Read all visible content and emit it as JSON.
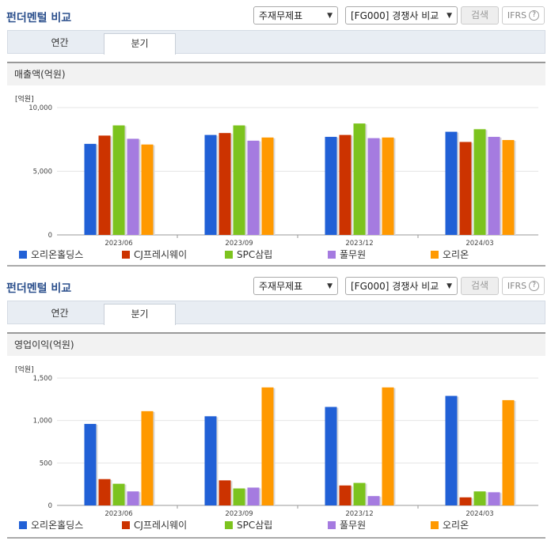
{
  "sections": [
    {
      "title": "펀더멘털 비교",
      "select1": "주재무제표",
      "select2": "[FG000] 경쟁사 비교",
      "search_label": "검색",
      "ifrs_label": "IFRS",
      "ifrs_help": "?",
      "tabs": [
        "연간",
        "분기"
      ],
      "active_tab": 1,
      "metric_label": "매출액(억원)",
      "unit_label": "[억원]"
    },
    {
      "title": "펀더멘털 비교",
      "select1": "주재무제표",
      "select2": "[FG000] 경쟁사 비교",
      "search_label": "검색",
      "ifrs_label": "IFRS",
      "ifrs_help": "?",
      "tabs": [
        "연간",
        "분기"
      ],
      "active_tab": 1,
      "metric_label": "영업이익(억원)",
      "unit_label": "[억원]"
    }
  ],
  "chart_data": [
    {
      "type": "bar",
      "categories": [
        "2023/06",
        "2023/09",
        "2023/12",
        "2024/03"
      ],
      "ylim": [
        0,
        10000
      ],
      "yticks": [
        "0",
        "5,000",
        "10,000"
      ],
      "ytick_values": [
        0,
        5000,
        10000
      ],
      "series": [
        {
          "name": "오리온홀딩스",
          "color": "#2160d6",
          "values": [
            7150,
            7850,
            7700,
            8100
          ]
        },
        {
          "name": "CJ프레시웨이",
          "color": "#cc3300",
          "values": [
            7800,
            8000,
            7850,
            7300
          ]
        },
        {
          "name": "SPC삼립",
          "color": "#7cc31e",
          "values": [
            8600,
            8600,
            8750,
            8300
          ]
        },
        {
          "name": "풀무원",
          "color": "#a57be0",
          "values": [
            7550,
            7400,
            7600,
            7700
          ]
        },
        {
          "name": "오리온",
          "color": "#ff9900",
          "values": [
            7100,
            7650,
            7650,
            7450
          ]
        }
      ]
    },
    {
      "type": "bar",
      "categories": [
        "2023/06",
        "2023/09",
        "2023/12",
        "2024/03"
      ],
      "ylim": [
        0,
        1500
      ],
      "yticks": [
        "0",
        "500",
        "1,000",
        "1,500"
      ],
      "ytick_values": [
        0,
        500,
        1000,
        1500
      ],
      "series": [
        {
          "name": "오리온홀딩스",
          "color": "#2160d6",
          "values": [
            960,
            1050,
            1160,
            1290
          ]
        },
        {
          "name": "CJ프레시웨이",
          "color": "#cc3300",
          "values": [
            310,
            295,
            235,
            95
          ]
        },
        {
          "name": "SPC삼립",
          "color": "#7cc31e",
          "values": [
            255,
            200,
            265,
            165
          ]
        },
        {
          "name": "풀무원",
          "color": "#a57be0",
          "values": [
            165,
            210,
            110,
            155
          ]
        },
        {
          "name": "오리온",
          "color": "#ff9900",
          "values": [
            1110,
            1390,
            1390,
            1240
          ]
        }
      ]
    }
  ]
}
